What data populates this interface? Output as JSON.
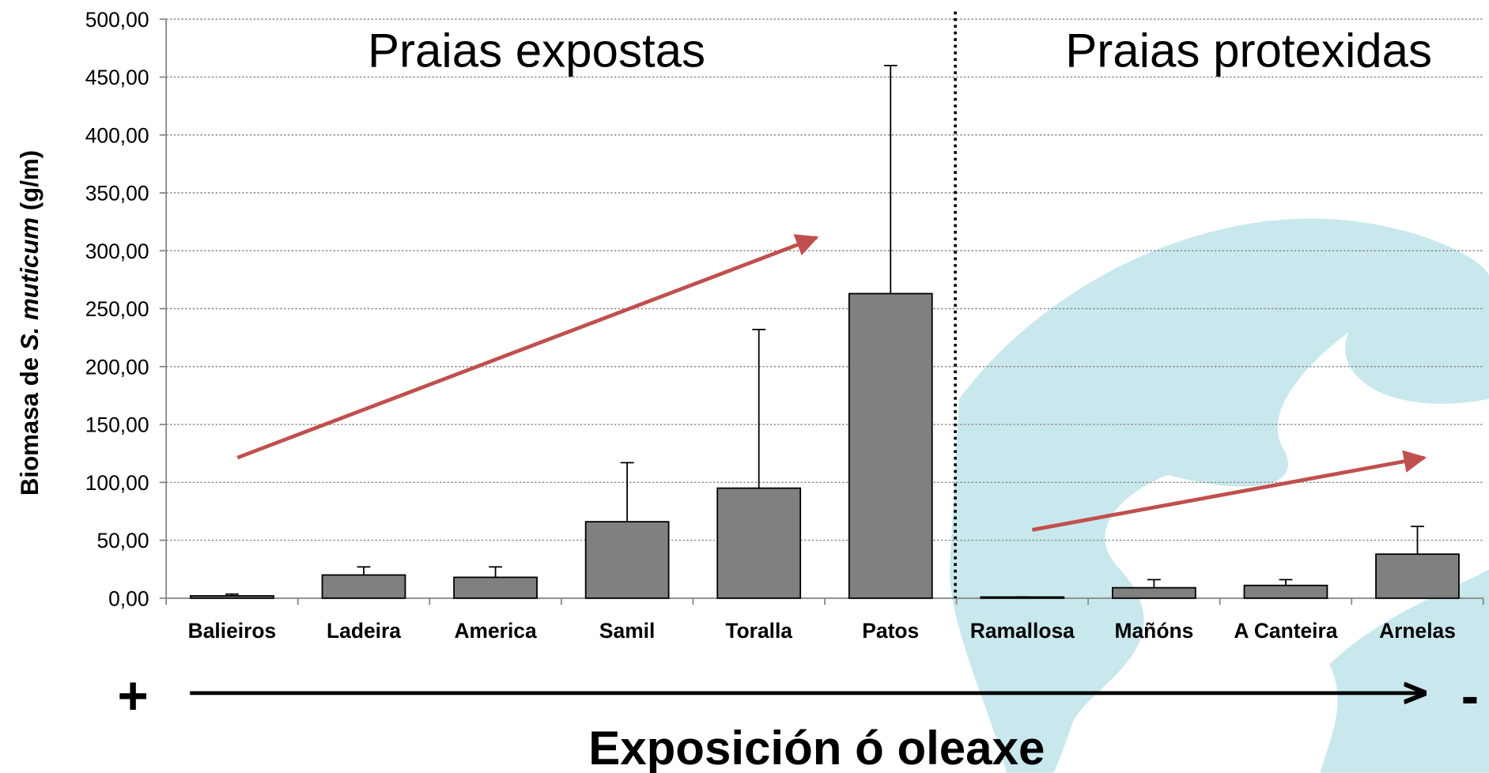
{
  "chart_data": {
    "type": "bar",
    "categories": [
      "Balieiros",
      "Ladeira",
      "America",
      "Samil",
      "Toralla",
      "Patos",
      "Ramallosa",
      "Mañóns",
      "A Canteira",
      "Arnelas"
    ],
    "values": [
      2,
      20,
      18,
      66,
      95,
      263,
      1,
      9,
      11,
      38
    ],
    "errors": [
      1.5,
      7,
      9,
      51,
      137,
      197,
      0,
      7,
      5,
      24
    ],
    "color": "#808080",
    "ylim": [
      0,
      500
    ],
    "yticks": [
      {
        "value": 0,
        "label": "0,00"
      },
      {
        "value": 50,
        "label": "50,00"
      },
      {
        "value": 100,
        "label": "100,00"
      },
      {
        "value": 150,
        "label": "150,00"
      },
      {
        "value": 200,
        "label": "200,00"
      },
      {
        "value": 250,
        "label": "250,00"
      },
      {
        "value": 300,
        "label": "300,00"
      },
      {
        "value": 350,
        "label": "350,00"
      },
      {
        "value": 400,
        "label": "400,00"
      },
      {
        "value": 450,
        "label": "450,00"
      },
      {
        "value": 500,
        "label": "500,00"
      }
    ],
    "grid": true,
    "y_label": {
      "prefix": "Biomasa de ",
      "italic": "S. muticum",
      "suffix": " (g/m)"
    },
    "annotations": {
      "left_group": "Praias expostas",
      "right_group": "Praias protexidas",
      "plus": "+",
      "minus": "-",
      "x_label": "Exposición ó oleaxe"
    }
  }
}
